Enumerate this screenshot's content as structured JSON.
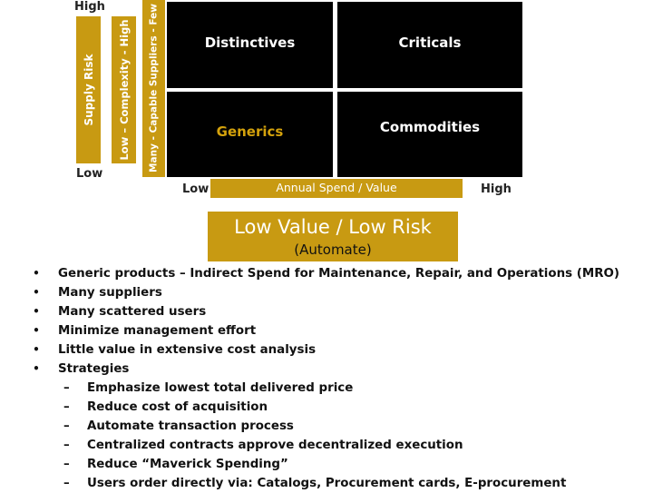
{
  "matrix": {
    "y_axis": {
      "high_label": "High",
      "low_label": "Low",
      "supply_risk_label": "Supply Risk",
      "complexity_label": "Low – Complexity - High",
      "suppliers_label": "Many - Capable Suppliers - Few"
    },
    "x_axis": {
      "low_label": "Low",
      "high_label": "High",
      "title": "Annual Spend / Value"
    },
    "quadrants": {
      "top_left": "Distinctives",
      "top_right": "Criticals",
      "bottom_left": "Generics",
      "bottom_right": "Commodities"
    },
    "colors": {
      "gold": "#c89a12",
      "quadrant_bg": "#000000",
      "generics_text": "#d4a20c"
    }
  },
  "callout": {
    "title": "Low Value / Low Risk",
    "subtitle": "(Automate)"
  },
  "bullets": [
    "Generic products – Indirect Spend for Maintenance, Repair, and Operations (MRO)",
    "Many suppliers",
    "Many scattered users",
    "Minimize management effort",
    "Little value in extensive cost analysis",
    "Strategies"
  ],
  "sub_bullets": [
    "Emphasize lowest total delivered price",
    "Reduce cost of acquisition",
    "Automate transaction process",
    "Centralized contracts approve decentralized execution",
    "Reduce “Maverick Spending”",
    "Users order directly via: Catalogs, Procurement cards, E-procurement"
  ],
  "bullet_glyph": "•",
  "dash_glyph": "–"
}
